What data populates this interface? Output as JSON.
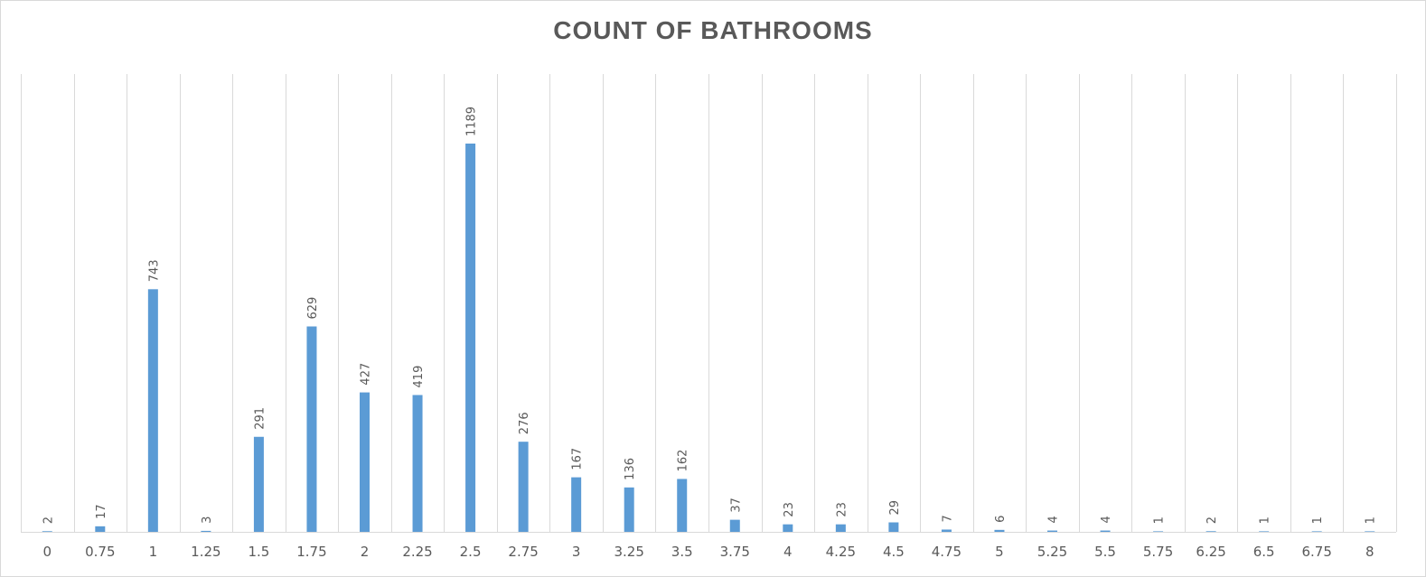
{
  "chart_data": {
    "type": "bar",
    "title": "COUNT OF BATHROOMS",
    "xlabel": "",
    "ylabel": "",
    "categories": [
      "0",
      "0.75",
      "1",
      "1.25",
      "1.5",
      "1.75",
      "2",
      "2.25",
      "2.5",
      "2.75",
      "3",
      "3.25",
      "3.5",
      "3.75",
      "4",
      "4.25",
      "4.5",
      "4.75",
      "5",
      "5.25",
      "5.5",
      "5.75",
      "6.25",
      "6.5",
      "6.75",
      "8"
    ],
    "values": [
      2,
      17,
      743,
      3,
      291,
      629,
      427,
      419,
      1189,
      276,
      167,
      136,
      162,
      37,
      23,
      23,
      29,
      7,
      6,
      4,
      4,
      1,
      2,
      1,
      1,
      1
    ],
    "data_labels": [
      "2",
      "17",
      "743",
      "3",
      "291",
      "629",
      "427",
      "419",
      "1189",
      "276",
      "167",
      "136",
      "162",
      "37",
      "23",
      "23",
      "29",
      "7",
      "6",
      "4",
      "4",
      "1",
      "2",
      "1",
      "1",
      "1"
    ],
    "bar_color": "#5B9BD5",
    "grid": true,
    "grid_orientation": "vertical",
    "legend": "none"
  }
}
